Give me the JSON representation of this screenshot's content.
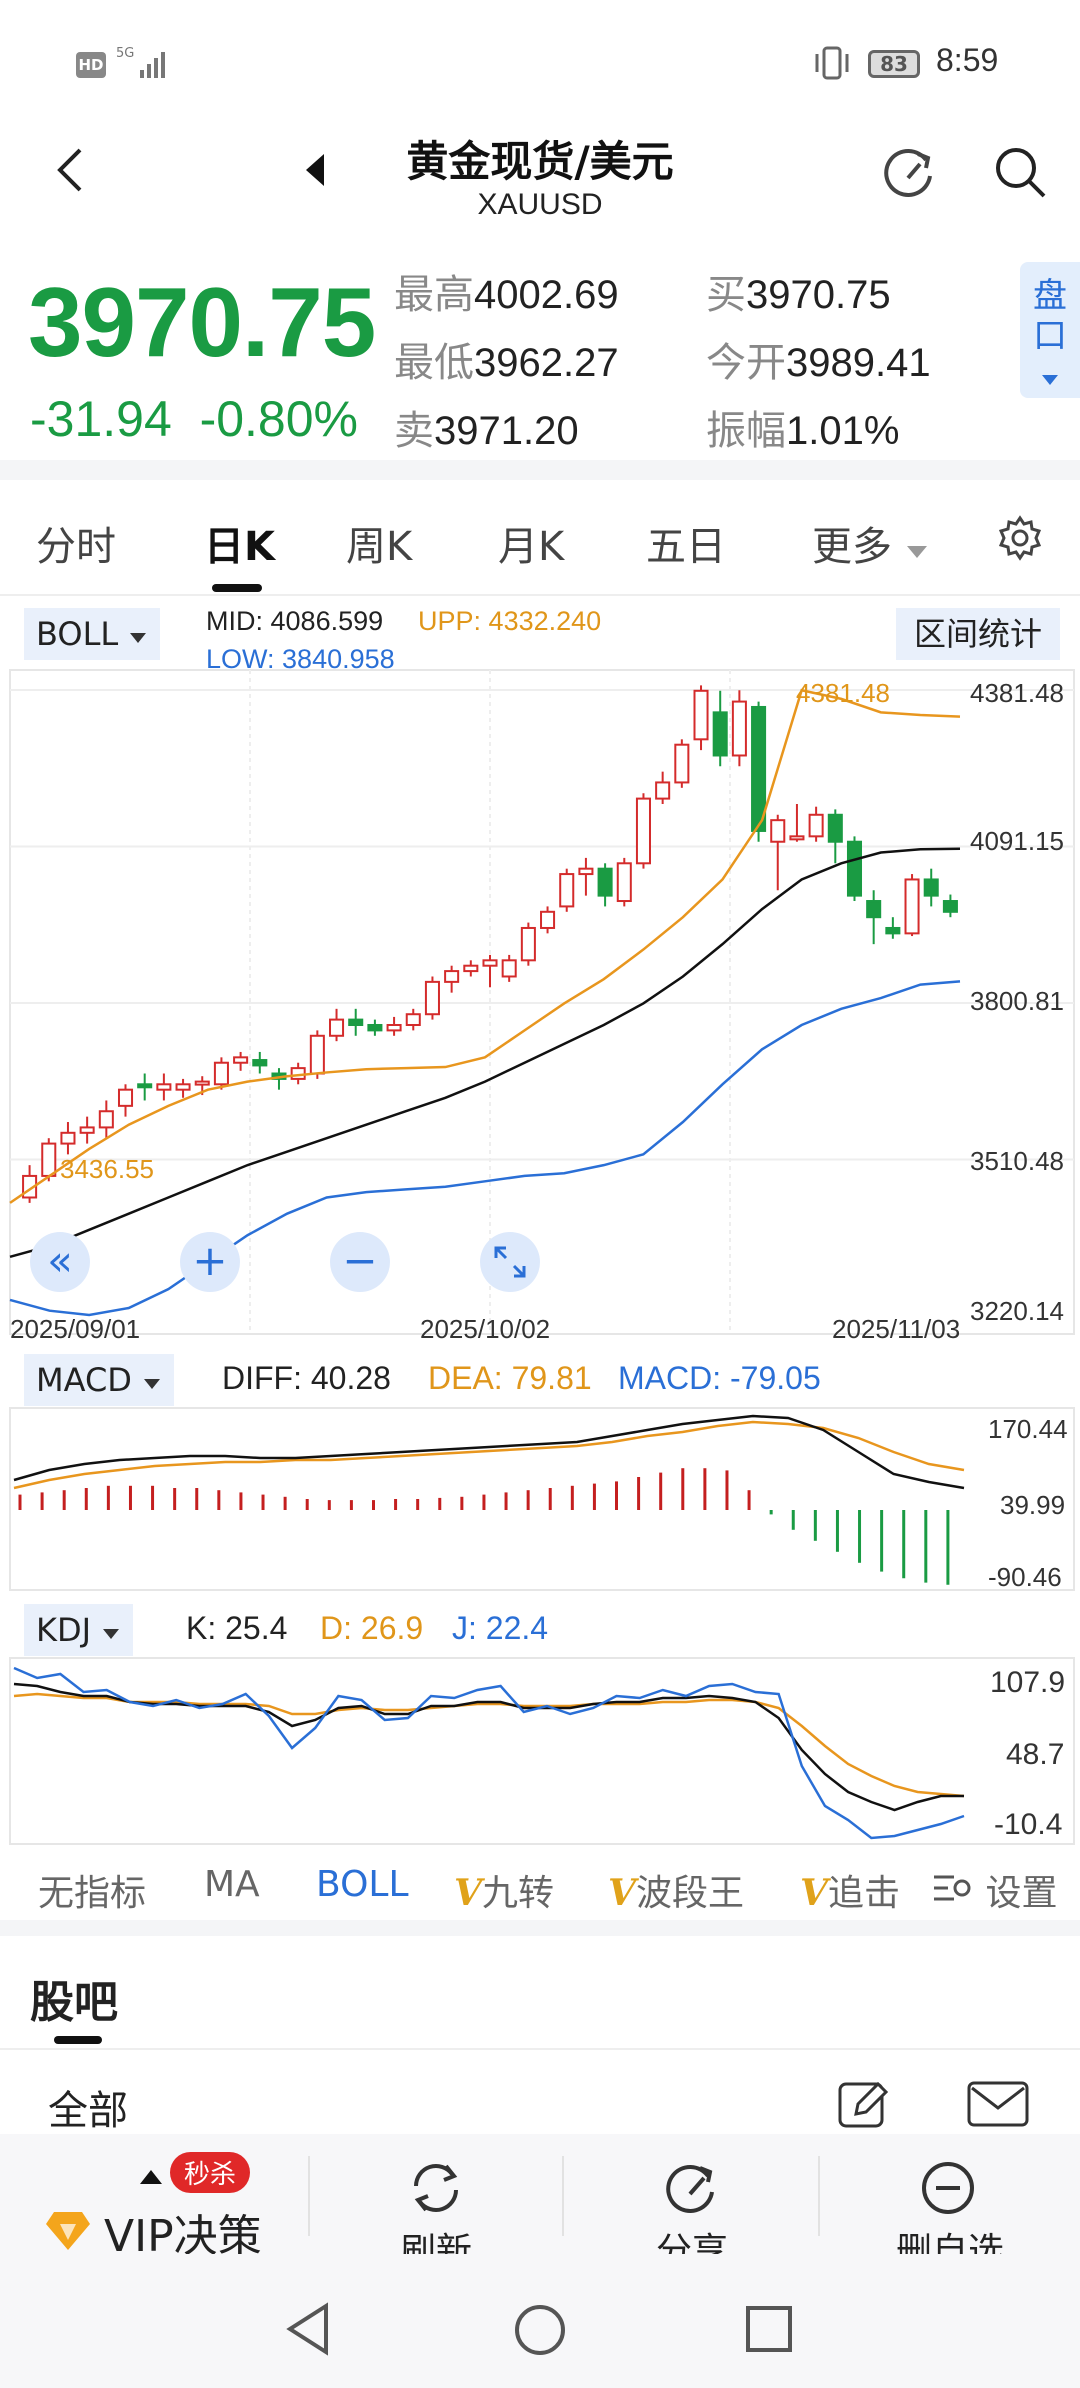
{
  "status_bar": {
    "hd": "HD",
    "net": "5G",
    "battery": "83",
    "time": "8:59"
  },
  "header": {
    "title": "黄金现货/美元",
    "symbol": "XAUUSD"
  },
  "quote": {
    "price": "3970.75",
    "change": "-31.94",
    "change_pct": "-0.80%",
    "high_label": "最高",
    "high": "4002.69",
    "low_label": "最低",
    "low": "3962.27",
    "sell_label": "卖",
    "sell": "3971.20",
    "buy_label": "买",
    "buy": "3970.75",
    "open_label": "今开",
    "open": "3989.41",
    "amp_label": "振幅",
    "amp": "1.01%",
    "pankou": "盘口",
    "down_color": "#1a9b43",
    "up_color": "#d42b2b"
  },
  "tabs": [
    "分时",
    "日K",
    "周K",
    "月K",
    "五日",
    "更多"
  ],
  "main_chart": {
    "indicator": "BOLL",
    "mid_label": "MID:",
    "mid": "4086.599",
    "upp_label": "UPP:",
    "upp": "4332.240",
    "low_label": "LOW:",
    "low": "3840.958",
    "range_stats": "区间统计",
    "y_ticks": [
      "4381.48",
      "4091.15",
      "3800.81",
      "3510.48",
      "3220.14"
    ],
    "x_ticks": [
      "2025/09/01",
      "2025/10/02",
      "2025/11/03"
    ],
    "max_annot": "4381.48",
    "min_annot": "3436.55"
  },
  "macd": {
    "label": "MACD",
    "diff": "DIFF: 40.28",
    "dea": "DEA: 79.81",
    "macd": "MACD: -79.05",
    "ticks": [
      "170.44",
      "39.99",
      "-90.46"
    ]
  },
  "kdj": {
    "label": "KDJ",
    "k": "K: 25.4",
    "d": "D: 26.9",
    "j": "J: 22.4",
    "ticks": [
      "107.9",
      "48.7",
      "-10.4"
    ]
  },
  "indicator_tabs": {
    "none": "无指标",
    "ma": "MA",
    "boll": "BOLL",
    "v": "V",
    "jiuzhuan": "九转",
    "boduan": "波段王",
    "zhuiji": "追击",
    "settings": "设置"
  },
  "guba": {
    "title": "股吧",
    "all": "全部"
  },
  "bottom_bar": {
    "vip_badge": "秒杀",
    "vip": "VIP决策",
    "refresh": "刷新",
    "share": "分享",
    "remove": "删自选"
  },
  "chart_data": {
    "type": "candlestick",
    "x_range": [
      "2025/09/01",
      "2025/11/03"
    ],
    "ylim": [
      3220.14,
      4381.48
    ],
    "candles": [
      [
        3440,
        3480,
        3430,
        3500
      ],
      [
        3480,
        3540,
        3470,
        3550
      ],
      [
        3540,
        3560,
        3520,
        3580
      ],
      [
        3560,
        3570,
        3540,
        3590
      ],
      [
        3570,
        3600,
        3550,
        3620
      ],
      [
        3610,
        3640,
        3590,
        3650
      ],
      [
        3650,
        3645,
        3620,
        3670
      ],
      [
        3640,
        3650,
        3620,
        3670
      ],
      [
        3640,
        3650,
        3625,
        3660
      ],
      [
        3650,
        3655,
        3630,
        3665
      ],
      [
        3650,
        3690,
        3640,
        3700
      ],
      [
        3690,
        3700,
        3675,
        3710
      ],
      [
        3695,
        3685,
        3670,
        3710
      ],
      [
        3670,
        3660,
        3640,
        3680
      ],
      [
        3660,
        3680,
        3650,
        3690
      ],
      [
        3670,
        3740,
        3660,
        3750
      ],
      [
        3740,
        3770,
        3730,
        3790
      ],
      [
        3770,
        3760,
        3740,
        3790
      ],
      [
        3760,
        3750,
        3740,
        3770
      ],
      [
        3750,
        3760,
        3740,
        3775
      ],
      [
        3760,
        3780,
        3750,
        3790
      ],
      [
        3780,
        3840,
        3770,
        3850
      ],
      [
        3840,
        3860,
        3820,
        3870
      ],
      [
        3860,
        3870,
        3850,
        3880
      ],
      [
        3870,
        3880,
        3830,
        3890
      ],
      [
        3850,
        3880,
        3840,
        3890
      ],
      [
        3880,
        3940,
        3870,
        3950
      ],
      [
        3940,
        3970,
        3930,
        3980
      ],
      [
        3980,
        4040,
        3970,
        4050
      ],
      [
        4040,
        4050,
        4000,
        4070
      ],
      [
        4050,
        4000,
        3980,
        4060
      ],
      [
        3990,
        4060,
        3980,
        4070
      ],
      [
        4060,
        4180,
        4050,
        4190
      ],
      [
        4180,
        4210,
        4170,
        4230
      ],
      [
        4210,
        4280,
        4200,
        4290
      ],
      [
        4290,
        4380,
        4270,
        4390
      ],
      [
        4340,
        4260,
        4240,
        4380
      ],
      [
        4260,
        4360,
        4240,
        4381
      ],
      [
        4350,
        4120,
        4100,
        4360
      ],
      [
        4100,
        4140,
        4010,
        4150
      ],
      [
        4110,
        4110,
        4100,
        4170
      ],
      [
        4110,
        4150,
        4100,
        4165
      ],
      [
        4150,
        4100,
        4060,
        4160
      ],
      [
        4100,
        4000,
        3990,
        4110
      ],
      [
        3990,
        3960,
        3910,
        4010
      ],
      [
        3940,
        3930,
        3920,
        3960
      ],
      [
        3930,
        4030,
        3925,
        4040
      ],
      [
        4030,
        4000,
        3980,
        4050
      ],
      [
        3990,
        3970,
        3960,
        4002
      ]
    ],
    "boll": {
      "upp": [
        3430,
        3480,
        3530,
        3575,
        3610,
        3640,
        3655,
        3665,
        3672,
        3678,
        3680,
        3682,
        3700,
        3750,
        3800,
        3845,
        3900,
        3960,
        4030,
        4140,
        4381,
        4365,
        4340,
        4335,
        4332
      ],
      "mid": [
        3330,
        3350,
        3380,
        3410,
        3440,
        3470,
        3500,
        3525,
        3550,
        3575,
        3600,
        3625,
        3655,
        3690,
        3725,
        3760,
        3800,
        3850,
        3910,
        3975,
        4030,
        4060,
        4080,
        4086,
        4087
      ],
      "low": [
        3250,
        3230,
        3222,
        3235,
        3270,
        3320,
        3370,
        3410,
        3440,
        3450,
        3455,
        3460,
        3470,
        3480,
        3485,
        3500,
        3520,
        3580,
        3650,
        3715,
        3760,
        3790,
        3810,
        3835,
        3841
      ]
    }
  }
}
